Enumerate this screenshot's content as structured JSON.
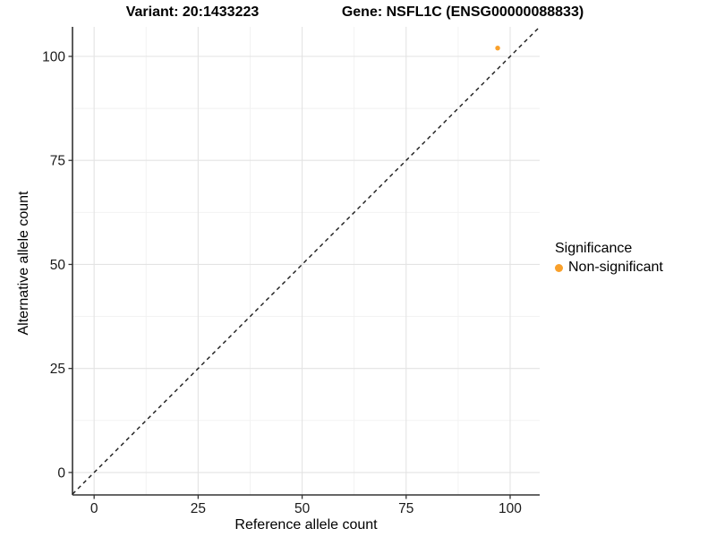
{
  "header": {
    "variant_title": "Variant: 20:1433223",
    "gene_title": "Gene: NSFL1C (ENSG00000088833)"
  },
  "chart_data": {
    "type": "scatter",
    "titles": [
      "Variant: 20:1433223",
      "Gene: NSFL1C (ENSG00000088833)"
    ],
    "xlabel": "Reference allele count",
    "ylabel": "Alternative allele count",
    "x_ticks": [
      0,
      25,
      50,
      75,
      100
    ],
    "y_ticks": [
      0,
      25,
      50,
      75,
      100
    ],
    "xlim": [
      -5.2,
      107.1
    ],
    "ylim": [
      -5.4,
      107.1
    ],
    "grid": {
      "major": true,
      "minor": true,
      "major_color": "#E3E3E3",
      "minor_color": "#F1F1F1"
    },
    "identity_line": {
      "slope": 1,
      "intercept": 0,
      "style": "dashed",
      "color": "#1a1a1a"
    },
    "series": [
      {
        "name": "Non-significant",
        "color": "#F9A02B",
        "points": [
          [
            97,
            102
          ]
        ]
      }
    ],
    "legend": {
      "title": "Significance",
      "position": "right",
      "entries": [
        {
          "label": "Non-significant",
          "color": "#F9A02B"
        }
      ]
    },
    "axis_color": "#333333",
    "tick_label_color": "#1a1a1a"
  }
}
